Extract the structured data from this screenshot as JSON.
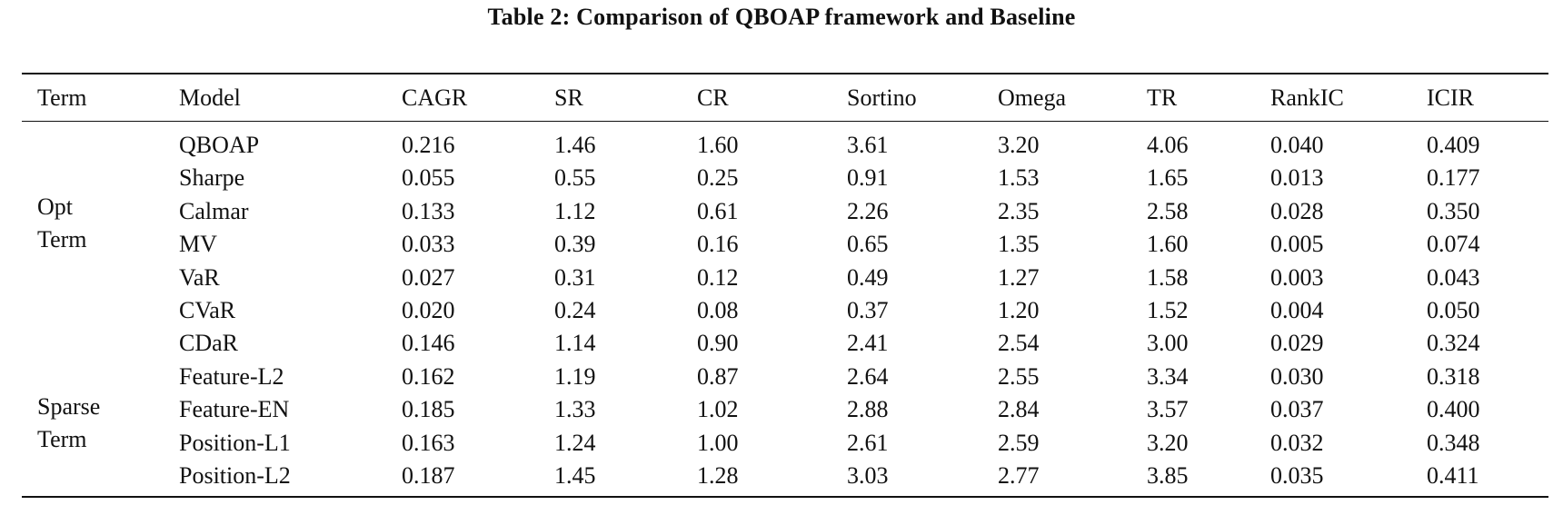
{
  "caption": "Table 2: Comparison of QBOAP framework and Baseline",
  "headers": [
    "Term",
    "Model",
    "CAGR",
    "SR",
    "CR",
    "Sortino",
    "Omega",
    "TR",
    "RankIC",
    "ICIR"
  ],
  "groups": [
    {
      "line1": "Opt",
      "line2": "Term"
    },
    {
      "line1": "Sparse",
      "line2": "Term"
    }
  ],
  "rows": [
    [
      "QBOAP",
      "0.216",
      "1.46",
      "1.60",
      "3.61",
      "3.20",
      "4.06",
      "0.040",
      "0.409"
    ],
    [
      "Sharpe",
      "0.055",
      "0.55",
      "0.25",
      "0.91",
      "1.53",
      "1.65",
      "0.013",
      "0.177"
    ],
    [
      "Calmar",
      "0.133",
      "1.12",
      "0.61",
      "2.26",
      "2.35",
      "2.58",
      "0.028",
      "0.350"
    ],
    [
      "MV",
      "0.033",
      "0.39",
      "0.16",
      "0.65",
      "1.35",
      "1.60",
      "0.005",
      "0.074"
    ],
    [
      "VaR",
      "0.027",
      "0.31",
      "0.12",
      "0.49",
      "1.27",
      "1.58",
      "0.003",
      "0.043"
    ],
    [
      "CVaR",
      "0.020",
      "0.24",
      "0.08",
      "0.37",
      "1.20",
      "1.52",
      "0.004",
      "0.050"
    ],
    [
      "CDaR",
      "0.146",
      "1.14",
      "0.90",
      "2.41",
      "2.54",
      "3.00",
      "0.029",
      "0.324"
    ],
    [
      "Feature-L2",
      "0.162",
      "1.19",
      "0.87",
      "2.64",
      "2.55",
      "3.34",
      "0.030",
      "0.318"
    ],
    [
      "Feature-EN",
      "0.185",
      "1.33",
      "1.02",
      "2.88",
      "2.84",
      "3.57",
      "0.037",
      "0.400"
    ],
    [
      "Position-L1",
      "0.163",
      "1.24",
      "1.00",
      "2.61",
      "2.59",
      "3.20",
      "0.032",
      "0.348"
    ],
    [
      "Position-L2",
      "0.187",
      "1.45",
      "1.28",
      "3.03",
      "2.77",
      "3.85",
      "0.035",
      "0.411"
    ]
  ]
}
